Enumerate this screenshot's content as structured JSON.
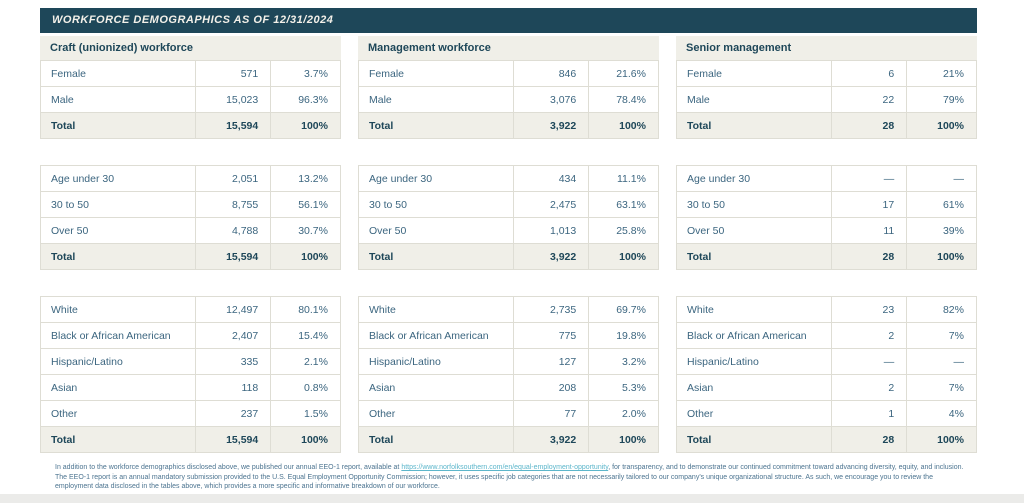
{
  "banner": {
    "title": "WORKFORCE DEMOGRAPHICS AS OF 12/31/2024"
  },
  "colors": {
    "banner_bg": "#1E4759",
    "section_header_bg": "#F0EFE8",
    "total_row_bg": "#F0EFE8",
    "cell_text": "#3B657F",
    "border": "#DEDDD4",
    "link": "#5CB6CB"
  },
  "columns": [
    {
      "title": "Craft (unionized) workforce",
      "gender": {
        "rows": [
          [
            "Female",
            "571",
            "3.7%"
          ],
          [
            "Male",
            "15,023",
            "96.3%"
          ],
          [
            "Total",
            "15,594",
            "100%"
          ]
        ]
      },
      "age": {
        "rows": [
          [
            "Age under 30",
            "2,051",
            "13.2%"
          ],
          [
            "30 to 50",
            "8,755",
            "56.1%"
          ],
          [
            "Over 50",
            "4,788",
            "30.7%"
          ],
          [
            "Total",
            "15,594",
            "100%"
          ]
        ]
      },
      "ethnicity": {
        "rows": [
          [
            "White",
            "12,497",
            "80.1%"
          ],
          [
            "Black or African American",
            "2,407",
            "15.4%"
          ],
          [
            "Hispanic/Latino",
            "335",
            "2.1%"
          ],
          [
            "Asian",
            "118",
            "0.8%"
          ],
          [
            "Other",
            "237",
            "1.5%"
          ],
          [
            "Total",
            "15,594",
            "100%"
          ]
        ]
      }
    },
    {
      "title": "Management workforce",
      "gender": {
        "rows": [
          [
            "Female",
            "846",
            "21.6%"
          ],
          [
            "Male",
            "3,076",
            "78.4%"
          ],
          [
            "Total",
            "3,922",
            "100%"
          ]
        ]
      },
      "age": {
        "rows": [
          [
            "Age under 30",
            "434",
            "11.1%"
          ],
          [
            "30 to 50",
            "2,475",
            "63.1%"
          ],
          [
            "Over 50",
            "1,013",
            "25.8%"
          ],
          [
            "Total",
            "3,922",
            "100%"
          ]
        ]
      },
      "ethnicity": {
        "rows": [
          [
            "White",
            "2,735",
            "69.7%"
          ],
          [
            "Black or African American",
            "775",
            "19.8%"
          ],
          [
            "Hispanic/Latino",
            "127",
            "3.2%"
          ],
          [
            "Asian",
            "208",
            "5.3%"
          ],
          [
            "Other",
            "77",
            "2.0%"
          ],
          [
            "Total",
            "3,922",
            "100%"
          ]
        ]
      }
    },
    {
      "title": "Senior management",
      "gender": {
        "rows": [
          [
            "Female",
            "6",
            "21%"
          ],
          [
            "Male",
            "22",
            "79%"
          ],
          [
            "Total",
            "28",
            "100%"
          ]
        ]
      },
      "age": {
        "rows": [
          [
            "Age under 30",
            "—",
            "—"
          ],
          [
            "30 to 50",
            "17",
            "61%"
          ],
          [
            "Over 50",
            "11",
            "39%"
          ],
          [
            "Total",
            "28",
            "100%"
          ]
        ]
      },
      "ethnicity": {
        "rows": [
          [
            "White",
            "23",
            "82%"
          ],
          [
            "Black or African American",
            "2",
            "7%"
          ],
          [
            "Hispanic/Latino",
            "—",
            "—"
          ],
          [
            "Asian",
            "2",
            "7%"
          ],
          [
            "Other",
            "1",
            "4%"
          ],
          [
            "Total",
            "28",
            "100%"
          ]
        ]
      }
    }
  ],
  "footnote": {
    "text_before_link": "In addition to the workforce demographics disclosed above, we published our annual EEO-1 report, available at ",
    "link_text": "https://www.norfolksouthern.com/en/equal-employment-opportunity",
    "text_after_link": ", for transparency, and to demonstrate our continued commitment toward advancing diversity, equity, and inclusion. The EEO-1 report is an annual mandatory submission provided to the U.S. Equal Employment Opportunity Commission; however, it uses specific job categories that are not necessarily tailored to our company's unique organizational structure. As such, we encourage you to review the employment data disclosed in the tables above, which provides a more specific and informative breakdown of our workforce."
  }
}
